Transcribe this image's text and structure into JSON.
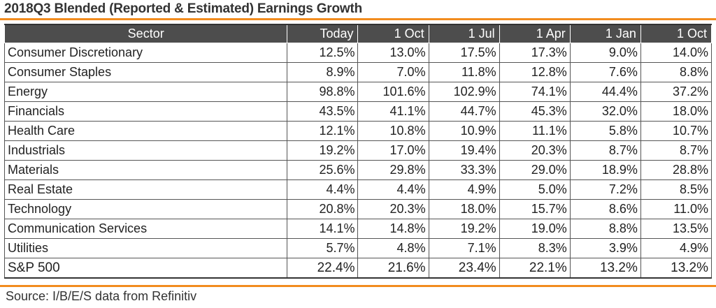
{
  "title": "2018Q3 Blended (Reported & Estimated) Earnings Growth",
  "columns": [
    "Sector",
    "Today",
    "1 Oct",
    "1 Jul",
    "1 Apr",
    "1 Jan",
    "1 Oct"
  ],
  "rows": [
    {
      "sector": "Consumer Discretionary",
      "values": [
        "12.5%",
        "13.0%",
        "17.5%",
        "17.3%",
        "9.0%",
        "14.0%"
      ]
    },
    {
      "sector": "Consumer Staples",
      "values": [
        "8.9%",
        "7.0%",
        "11.8%",
        "12.8%",
        "7.6%",
        "8.8%"
      ]
    },
    {
      "sector": "Energy",
      "values": [
        "98.8%",
        "101.6%",
        "102.9%",
        "74.1%",
        "44.4%",
        "37.2%"
      ]
    },
    {
      "sector": "Financials",
      "values": [
        "43.5%",
        "41.1%",
        "44.7%",
        "45.3%",
        "32.0%",
        "18.0%"
      ]
    },
    {
      "sector": "Health Care",
      "values": [
        "12.1%",
        "10.8%",
        "10.9%",
        "11.1%",
        "5.8%",
        "10.7%"
      ]
    },
    {
      "sector": "Industrials",
      "values": [
        "19.2%",
        "17.0%",
        "19.4%",
        "20.3%",
        "8.7%",
        "8.7%"
      ]
    },
    {
      "sector": "Materials",
      "values": [
        "25.6%",
        "29.8%",
        "33.3%",
        "29.0%",
        "18.9%",
        "28.8%"
      ]
    },
    {
      "sector": "Real Estate",
      "values": [
        "4.4%",
        "4.4%",
        "4.9%",
        "5.0%",
        "7.2%",
        "8.5%"
      ]
    },
    {
      "sector": "Technology",
      "values": [
        "20.8%",
        "20.3%",
        "18.0%",
        "15.7%",
        "8.6%",
        "11.0%"
      ]
    },
    {
      "sector": "Communication Services",
      "values": [
        "14.1%",
        "14.8%",
        "19.2%",
        "19.0%",
        "8.8%",
        "13.5%"
      ]
    },
    {
      "sector": "Utilities",
      "values": [
        "5.7%",
        "4.8%",
        "7.1%",
        "8.3%",
        "3.9%",
        "4.9%"
      ]
    },
    {
      "sector": "S&P 500",
      "values": [
        "22.4%",
        "21.6%",
        "23.4%",
        "22.1%",
        "13.2%",
        "13.2%"
      ]
    }
  ],
  "source": "Source: I/B/E/S data from Refinitiv",
  "colors": {
    "accent_rule": "#f28c1e",
    "header_bg": "#4d4d4d"
  }
}
